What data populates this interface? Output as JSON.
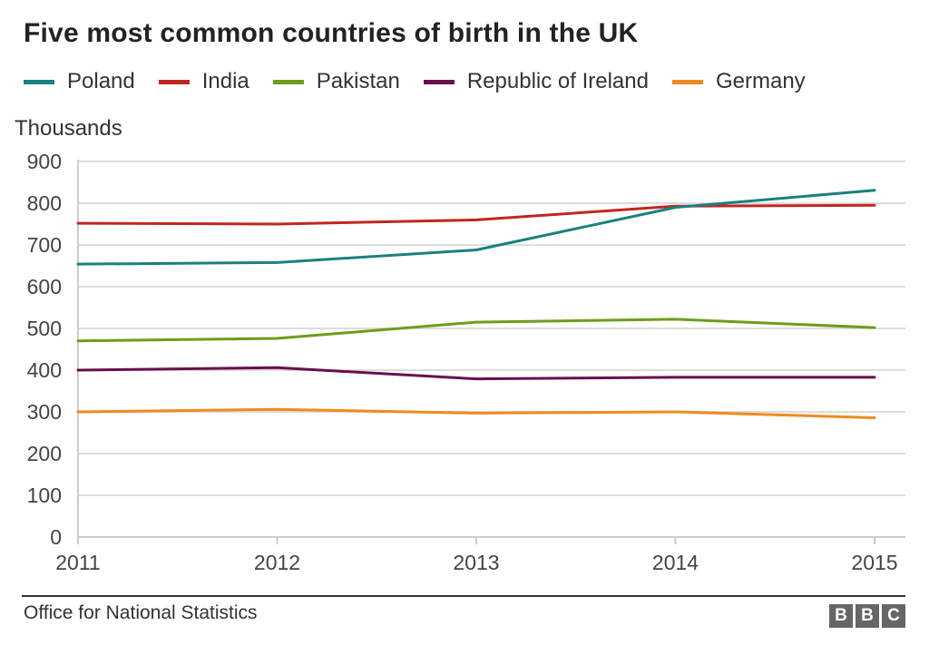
{
  "title": "Five most common countries of birth in the UK",
  "unit_label": "Thousands",
  "source": "Office for National Statistics",
  "logo_text": [
    "B",
    "B",
    "C"
  ],
  "chart_data": {
    "type": "line",
    "title": "Five most common countries of birth in the UK",
    "ylabel": "Thousands",
    "xlabel": "",
    "x": [
      "2011",
      "2012",
      "2013",
      "2014",
      "2015"
    ],
    "ylim": [
      0,
      900
    ],
    "yticks": [
      "0",
      "100",
      "200",
      "300",
      "400",
      "500",
      "600",
      "700",
      "800",
      "900"
    ],
    "grid": true,
    "legend_position": "top",
    "series": [
      {
        "name": "Poland",
        "color": "#1a8080",
        "values": [
          654,
          658,
          688,
          790,
          831
        ]
      },
      {
        "name": "India",
        "color": "#c2261f",
        "values": [
          752,
          750,
          760,
          793,
          795
        ]
      },
      {
        "name": "Pakistan",
        "color": "#6e9d1a",
        "values": [
          470,
          476,
          515,
          522,
          502
        ]
      },
      {
        "name": "Republic of Ireland",
        "color": "#6b0d4d",
        "values": [
          400,
          406,
          379,
          383,
          383
        ]
      },
      {
        "name": "Germany",
        "color": "#f08a1f",
        "values": [
          300,
          306,
          297,
          300,
          286
        ]
      }
    ]
  }
}
